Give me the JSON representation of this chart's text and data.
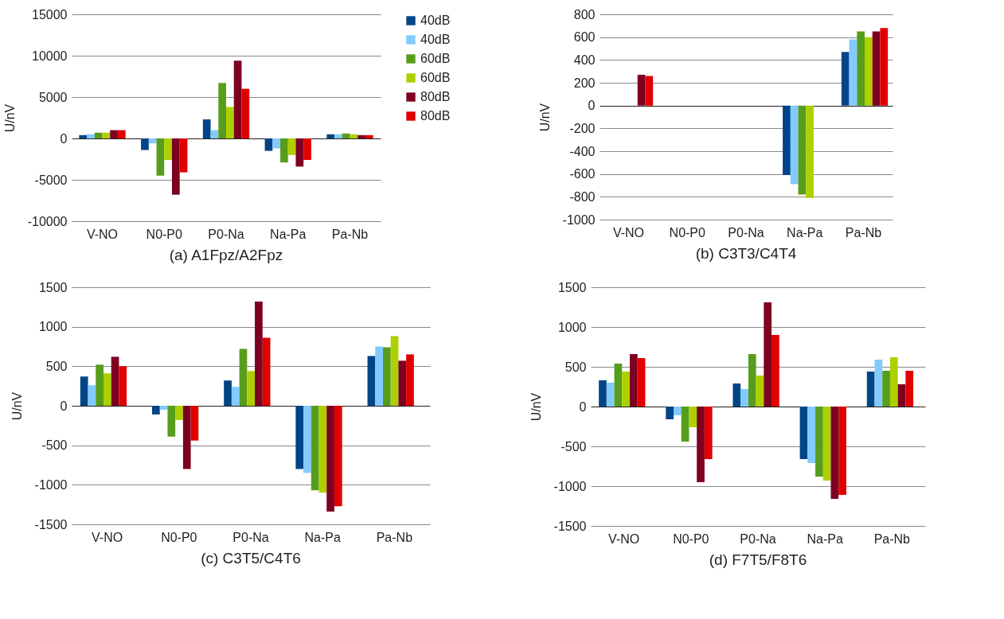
{
  "chart_data": [
    {
      "type": "bar",
      "title": "(a)  A1Fpz/A2Fpz",
      "ylabel": "U/nV",
      "categories": [
        "V-NO",
        "N0-P0",
        "P0-Na",
        "Na-Pa",
        "Pa-Nb"
      ],
      "ylim": [
        -10000,
        15000
      ],
      "yticks": [
        -10000,
        -5000,
        0,
        5000,
        10000,
        15000
      ],
      "grid": "y",
      "legend": "right",
      "series": [
        {
          "name": "40dB",
          "color": "#004586",
          "values": [
            400,
            -1400,
            2300,
            -1500,
            500
          ]
        },
        {
          "name": "40dB",
          "color": "#83caff",
          "values": [
            500,
            -600,
            1000,
            -1200,
            500
          ]
        },
        {
          "name": "60dB",
          "color": "#579d1c",
          "values": [
            700,
            -4500,
            6700,
            -2900,
            600
          ]
        },
        {
          "name": "60dB",
          "color": "#aecf00",
          "values": [
            700,
            -2600,
            3800,
            -2000,
            500
          ]
        },
        {
          "name": "80dB",
          "color": "#7e0021",
          "values": [
            1000,
            -6800,
            9400,
            -3400,
            400
          ]
        },
        {
          "name": "80dB",
          "color": "#e00000",
          "values": [
            1000,
            -4100,
            6000,
            -2600,
            400
          ]
        }
      ]
    },
    {
      "type": "bar",
      "title": "(b)  C3T3/C4T4",
      "ylabel": "U/nV",
      "categories": [
        "V-NO",
        "N0-P0",
        "P0-Na",
        "Na-Pa",
        "Pa-Nb"
      ],
      "ylim": [
        -1000,
        800
      ],
      "yticks": [
        -1000,
        -800,
        -600,
        -400,
        -200,
        0,
        200,
        400,
        600,
        800
      ],
      "grid": "y",
      "legend": false,
      "series": [
        {
          "color": "#004586",
          "values": [
            null,
            null,
            null,
            -610,
            470
          ]
        },
        {
          "color": "#83caff",
          "values": [
            null,
            null,
            null,
            -690,
            580
          ]
        },
        {
          "color": "#579d1c",
          "values": [
            null,
            null,
            null,
            -780,
            650
          ]
        },
        {
          "color": "#aecf00",
          "values": [
            null,
            null,
            null,
            -810,
            600
          ]
        },
        {
          "color": "#7e0021",
          "values": [
            270,
            null,
            null,
            null,
            650
          ]
        },
        {
          "color": "#e00000",
          "values": [
            260,
            null,
            null,
            null,
            680
          ]
        }
      ]
    },
    {
      "type": "bar",
      "title": "(c)  C3T5/C4T6",
      "ylabel": "U/nV",
      "categories": [
        "V-NO",
        "N0-P0",
        "P0-Na",
        "Na-Pa",
        "Pa-Nb"
      ],
      "ylim": [
        -1500,
        1500
      ],
      "yticks": [
        -1500,
        -1000,
        -500,
        0,
        500,
        1000,
        1500
      ],
      "grid": "y",
      "legend": false,
      "series": [
        {
          "color": "#004586",
          "values": [
            370,
            -110,
            320,
            -800,
            630
          ]
        },
        {
          "color": "#83caff",
          "values": [
            260,
            -50,
            240,
            -850,
            750
          ]
        },
        {
          "color": "#579d1c",
          "values": [
            520,
            -390,
            720,
            -1070,
            740
          ]
        },
        {
          "color": "#aecf00",
          "values": [
            410,
            -180,
            440,
            -1100,
            880
          ]
        },
        {
          "color": "#7e0021",
          "values": [
            620,
            -800,
            1320,
            -1340,
            570
          ]
        },
        {
          "color": "#e00000",
          "values": [
            500,
            -440,
            860,
            -1270,
            650
          ]
        }
      ]
    },
    {
      "type": "bar",
      "title": "(d)  F7T5/F8T6",
      "ylabel": "U/nV",
      "categories": [
        "V-NO",
        "N0-P0",
        "P0-Na",
        "Na-Pa",
        "Pa-Nb"
      ],
      "ylim": [
        -1500,
        1500
      ],
      "yticks": [
        -1500,
        -1000,
        -500,
        0,
        500,
        1000,
        1500
      ],
      "grid": "y",
      "legend": false,
      "series": [
        {
          "color": "#004586",
          "values": [
            330,
            -160,
            290,
            -660,
            440
          ]
        },
        {
          "color": "#83caff",
          "values": [
            300,
            -110,
            220,
            -710,
            590
          ]
        },
        {
          "color": "#579d1c",
          "values": [
            540,
            -440,
            660,
            -880,
            450
          ]
        },
        {
          "color": "#aecf00",
          "values": [
            440,
            -260,
            390,
            -930,
            620
          ]
        },
        {
          "color": "#7e0021",
          "values": [
            660,
            -950,
            1310,
            -1160,
            280
          ]
        },
        {
          "color": "#e00000",
          "values": [
            610,
            -660,
            900,
            -1110,
            450
          ]
        }
      ]
    }
  ]
}
